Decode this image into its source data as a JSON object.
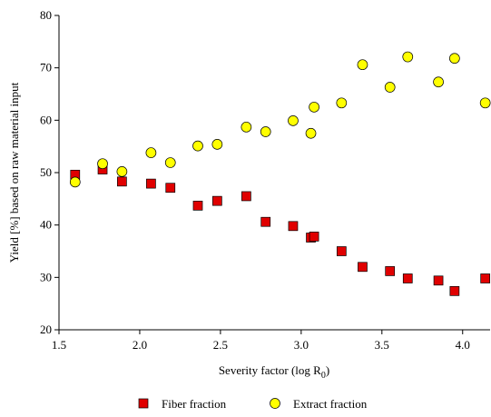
{
  "chart_data": {
    "type": "scatter",
    "x_label": "Severity factor (log R",
    "x_label_subscript": "0",
    "x_label_suffix": ")",
    "y_label": "Yield [%] based on raw material input",
    "xlim": [
      1.5,
      4.17
    ],
    "ylim": [
      20,
      80
    ],
    "xticks": [
      1.5,
      {
        "value": 2,
        "label": "2.0"
      },
      2.5,
      {
        "value": 3,
        "label": "3.0"
      },
      3.5,
      {
        "value": 4,
        "label": "4.0"
      }
    ],
    "yticks": [
      20,
      30,
      40,
      50,
      60,
      70,
      80
    ],
    "legend": "bottom",
    "series": [
      {
        "name": "Fiber fraction",
        "color": "#e00000",
        "marker": "square",
        "x": [
          1.6,
          1.77,
          1.89,
          2.07,
          2.19,
          2.36,
          2.48,
          2.66,
          2.78,
          2.95,
          3.06,
          3.08,
          3.25,
          3.38,
          3.55,
          3.66,
          3.85,
          3.95,
          4.14
        ],
        "values": [
          49.6,
          50.6,
          48.3,
          47.9,
          47.1,
          43.7,
          44.6,
          45.5,
          40.6,
          39.8,
          37.6,
          37.8,
          35.0,
          32.0,
          31.2,
          29.8,
          29.4,
          27.4,
          29.8
        ]
      },
      {
        "name": "Extract fraction",
        "color": "#ffff00",
        "marker": "circle",
        "x": [
          1.6,
          1.77,
          1.89,
          2.07,
          2.19,
          2.36,
          2.48,
          2.66,
          2.78,
          2.95,
          3.06,
          3.08,
          3.25,
          3.38,
          3.55,
          3.66,
          3.85,
          3.95,
          4.14
        ],
        "values": [
          48.2,
          51.7,
          50.2,
          53.8,
          51.9,
          55.1,
          55.4,
          58.7,
          57.8,
          59.9,
          57.5,
          62.5,
          63.3,
          70.6,
          66.3,
          72.1,
          67.3,
          71.8,
          63.3
        ]
      }
    ]
  }
}
